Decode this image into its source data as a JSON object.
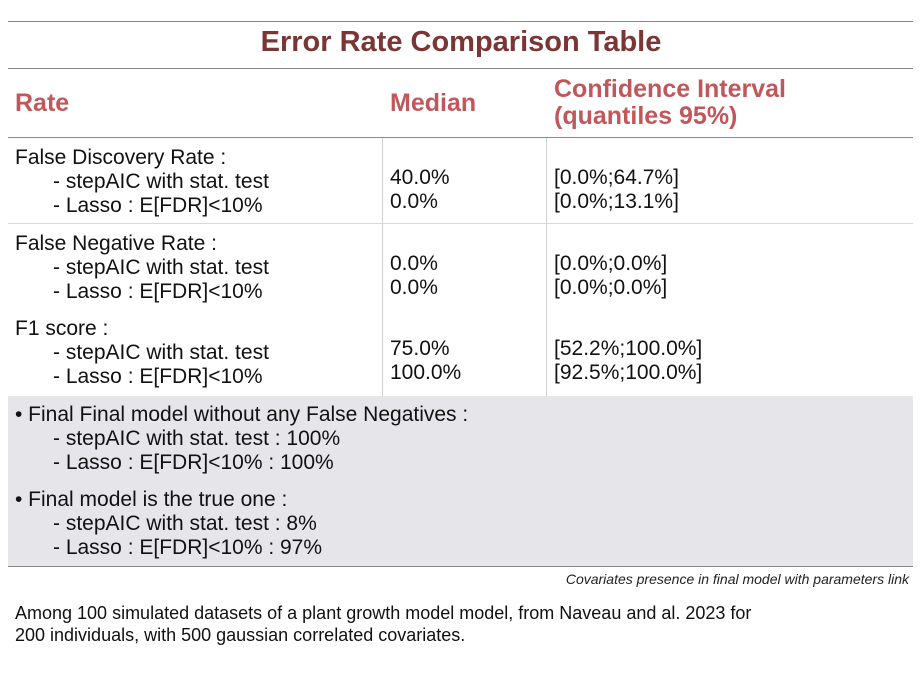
{
  "title": "Error Rate Comparison Table",
  "headers": {
    "rate": "Rate",
    "median": "Median",
    "ci_line1": "Confidence Interval",
    "ci_line2": "(quantiles 95%)"
  },
  "rows": [
    {
      "metric": "False Discovery Rate :",
      "method1": "- stepAIC with stat. test",
      "method2": "- Lasso : E[FDR]<10%",
      "median1": "40.0%",
      "median2": "0.0%",
      "ci1": "[0.0%;64.7%]",
      "ci2": "[0.0%;13.1%]"
    },
    {
      "metric": "False Negative Rate :",
      "method1": "- stepAIC with stat. test",
      "method2": "- Lasso : E[FDR]<10%",
      "median1": "0.0%",
      "median2": "0.0%",
      "ci1": "[0.0%;0.0%]",
      "ci2": "[0.0%;0.0%]"
    },
    {
      "metric": "F1 score :",
      "method1": "- stepAIC with stat. test",
      "method2": "- Lasso : E[FDR]<10%",
      "median1": "75.0%",
      "median2": "100.0%",
      "ci1": "[52.2%;100.0%]",
      "ci2": "[92.5%;100.0%]"
    }
  ],
  "summary": [
    {
      "heading": "• Final Final model without any False Negatives :",
      "line1": "- stepAIC with stat. test : 100%",
      "line2": "- Lasso : E[FDR]<10% : 100%"
    },
    {
      "heading": "• Final model is the true one :",
      "line1": "- stepAIC with stat. test : 8%",
      "line2": "- Lasso : E[FDR]<10% : 97%"
    }
  ],
  "footnote": "Covariates presence in final model with parameters link",
  "caption_line1": "Among 100 simulated datasets of a plant growth model model, from Naveau and al. 2023 for",
  "caption_line2": "200 individuals, with 500 gaussian correlated covariates.",
  "colors": {
    "title": "#7a3535",
    "header": "#c0575a",
    "summary_bg": "#e6e6ea"
  }
}
